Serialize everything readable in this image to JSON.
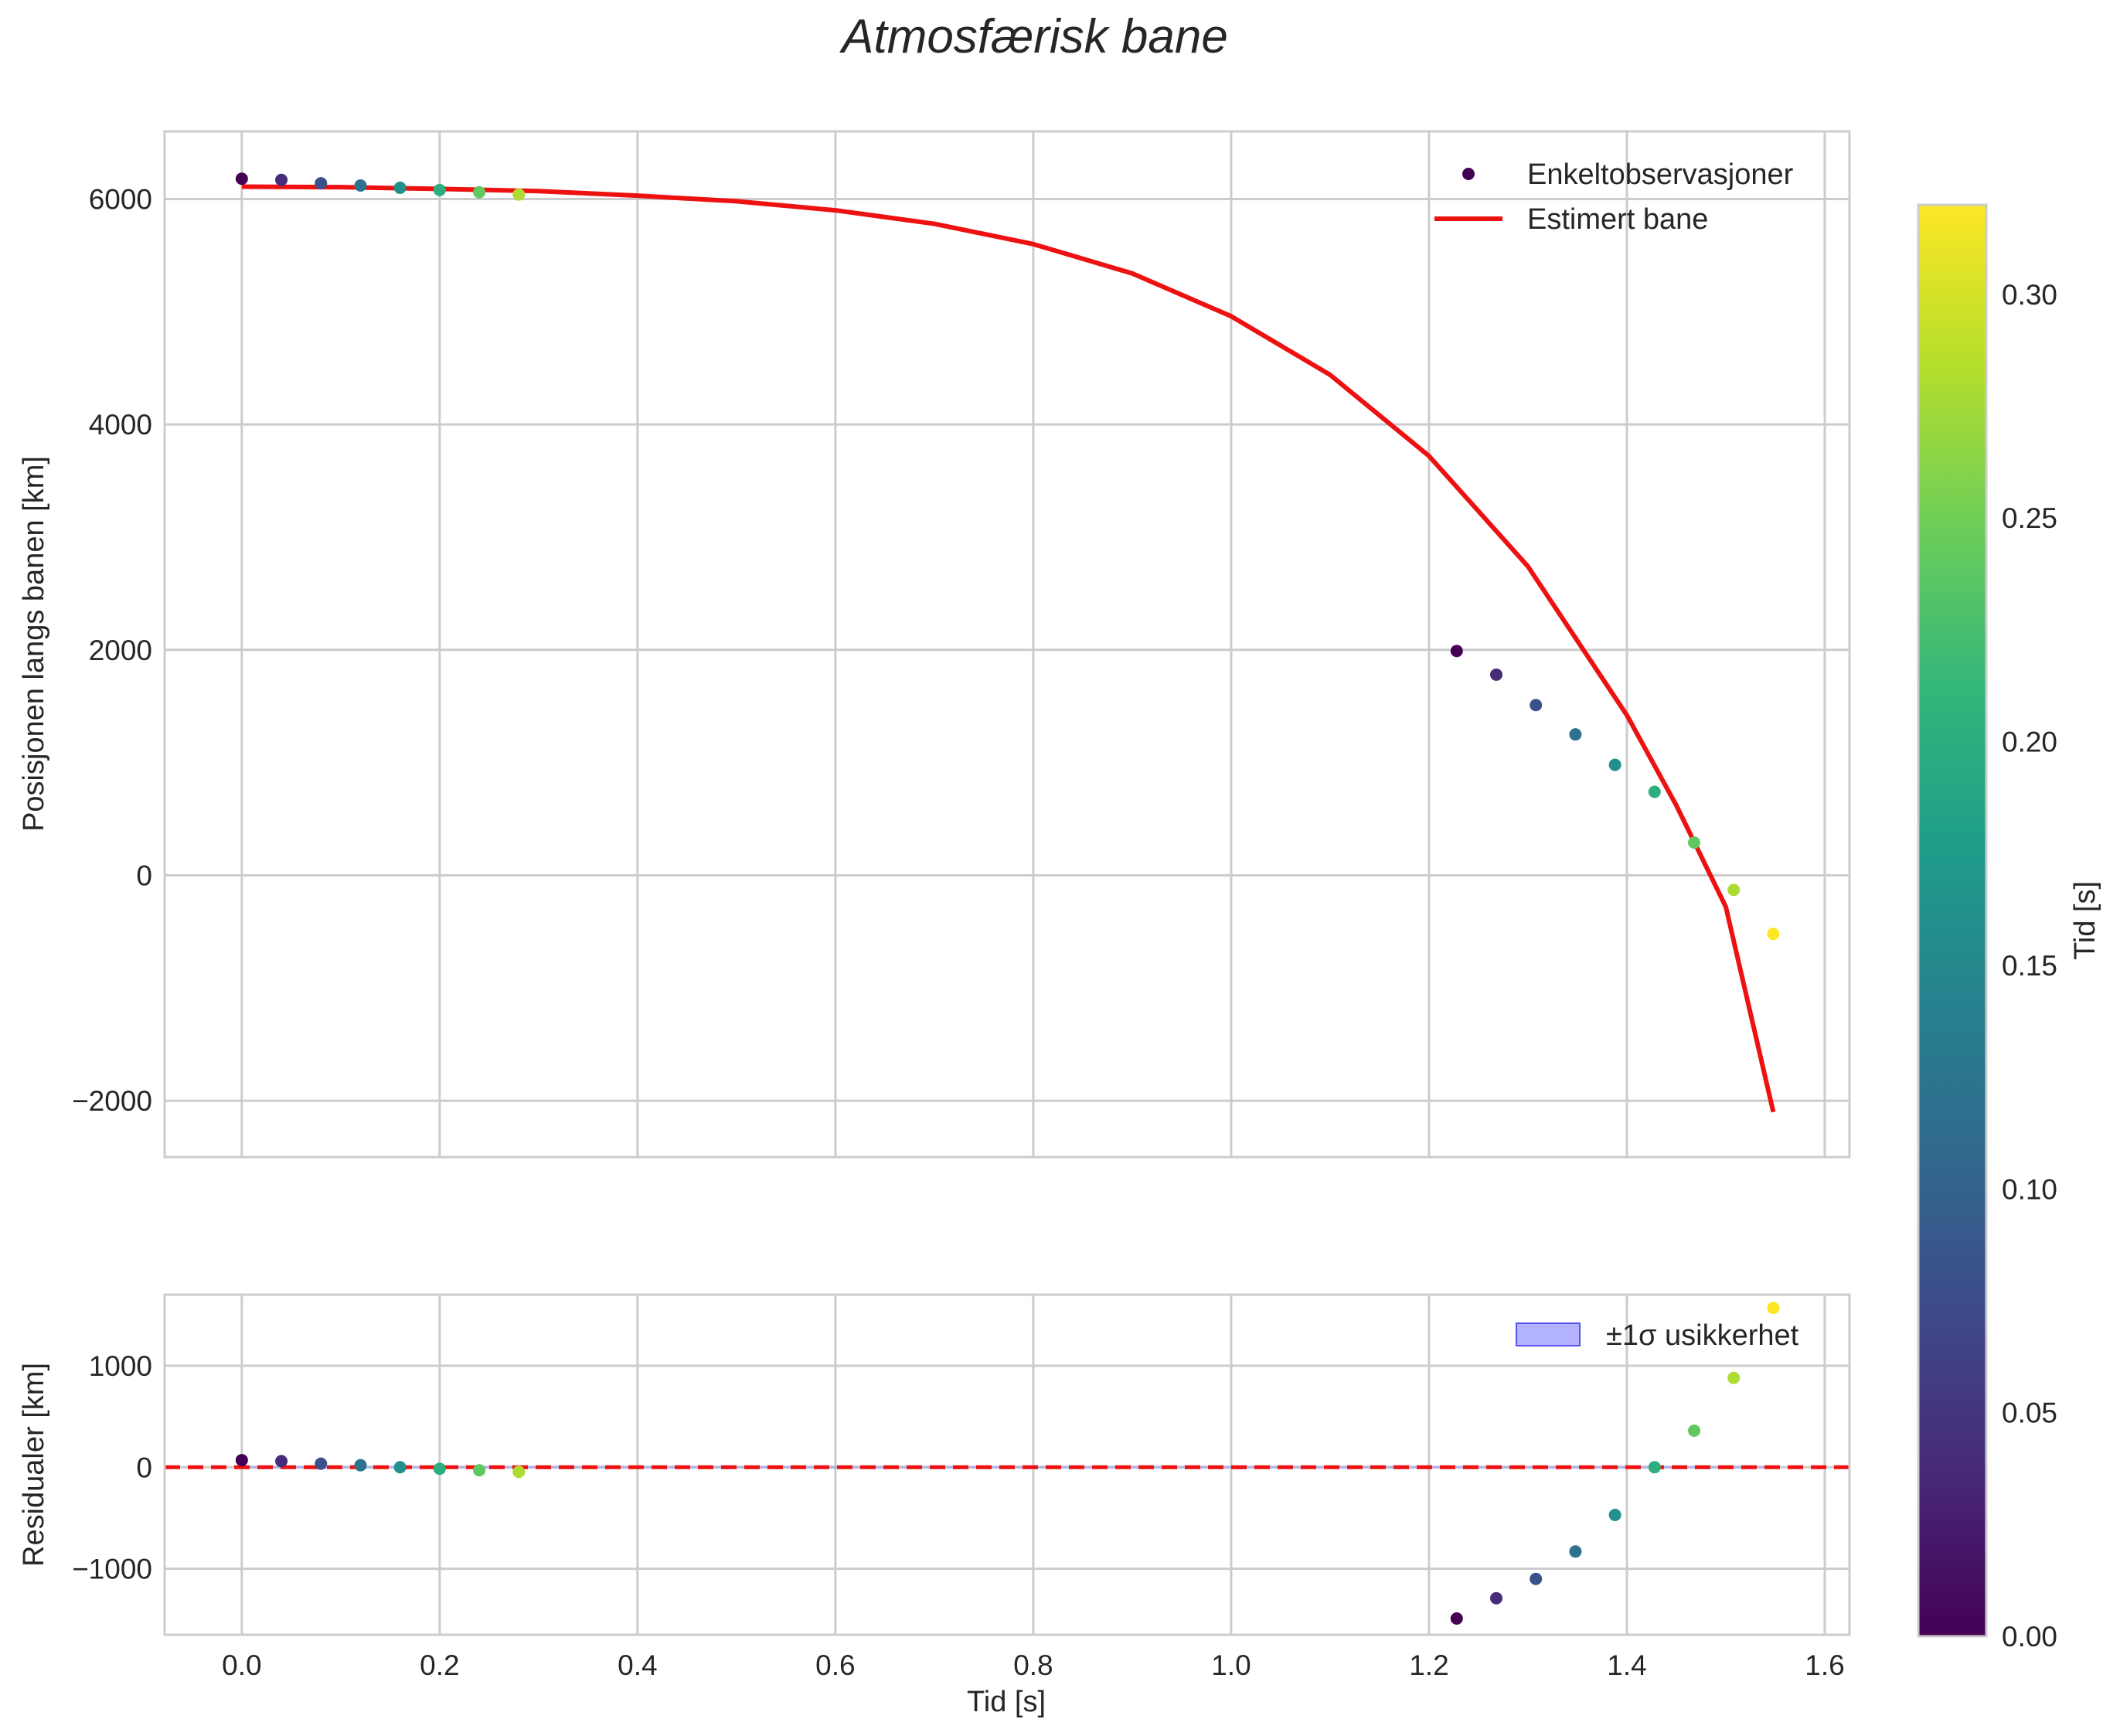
{
  "chart_data": [
    {
      "type": "scatter",
      "title": "Atmosfærisk bane",
      "xlabel": "",
      "ylabel": "Posisjonen langs banen [km]",
      "xlim": [
        -0.078,
        1.625
      ],
      "ylim": [
        -2500,
        6600
      ],
      "xticks": [
        0.0,
        0.2,
        0.4,
        0.6,
        0.8,
        1.0,
        1.2,
        1.4,
        1.6
      ],
      "yticks": [
        -2000,
        0,
        2000,
        4000,
        6000
      ],
      "ytick_labels": [
        "−2000",
        "0",
        "2000",
        "4000",
        "6000"
      ],
      "grid": true,
      "legend_position": "top-right",
      "series": [
        {
          "name": "Enkeltobservasjoner",
          "kind": "scatter",
          "x": [
            0.0,
            0.04,
            0.08,
            0.12,
            0.16,
            0.2,
            0.24,
            0.28,
            1.228,
            1.268,
            1.308,
            1.348,
            1.388,
            1.428,
            1.468,
            1.508,
            1.548
          ],
          "y": [
            6180,
            6170,
            6140,
            6120,
            6100,
            6080,
            6060,
            6040,
            1990,
            1780,
            1510,
            1250,
            980,
            740,
            290,
            -130,
            -520
          ],
          "color_values": [
            0.0,
            0.04,
            0.08,
            0.12,
            0.16,
            0.2,
            0.24,
            0.28,
            0.0,
            0.04,
            0.08,
            0.12,
            0.16,
            0.2,
            0.24,
            0.28,
            0.32
          ]
        },
        {
          "name": "Estimert bane",
          "kind": "line",
          "color": "#ee1111",
          "x": [
            0.0,
            0.1,
            0.2,
            0.3,
            0.4,
            0.5,
            0.6,
            0.7,
            0.8,
            0.9,
            1.0,
            1.1,
            1.2,
            1.3,
            1.4,
            1.45,
            1.5,
            1.548
          ],
          "y": [
            6110,
            6105,
            6090,
            6070,
            6030,
            5980,
            5900,
            5780,
            5600,
            5340,
            4960,
            4440,
            3720,
            2740,
            1420,
            620,
            -280,
            -2100
          ]
        }
      ]
    },
    {
      "type": "scatter",
      "title": "",
      "xlabel": "Tid [s]",
      "ylabel": "Residualer [km]",
      "xlim": [
        -0.078,
        1.625
      ],
      "ylim": [
        -1650,
        1700
      ],
      "xticks": [
        0.0,
        0.2,
        0.4,
        0.6,
        0.8,
        1.0,
        1.2,
        1.4,
        1.6
      ],
      "xtick_labels": [
        "0.0",
        "0.2",
        "0.4",
        "0.6",
        "0.8",
        "1.0",
        "1.2",
        "1.4",
        "1.6"
      ],
      "yticks": [
        -1000,
        0,
        1000
      ],
      "ytick_labels": [
        "−1000",
        "0",
        "1000"
      ],
      "grid": true,
      "legend_position": "top-right",
      "reference_line": {
        "y": 0,
        "color": "#ee1111",
        "style": "dashed"
      },
      "series": [
        {
          "name": "±1σ usikkerhet",
          "kind": "band",
          "color": "#8080ff",
          "lower": -15,
          "upper": 15
        },
        {
          "kind": "scatter",
          "x": [
            0.0,
            0.04,
            0.08,
            0.12,
            0.16,
            0.2,
            0.24,
            0.28,
            1.228,
            1.268,
            1.308,
            1.348,
            1.388,
            1.428,
            1.468,
            1.508,
            1.548
          ],
          "y": [
            70,
            60,
            35,
            20,
            0,
            -15,
            -30,
            -45,
            -1490,
            -1290,
            -1100,
            -830,
            -470,
            0,
            360,
            880,
            1570
          ],
          "color_values": [
            0.0,
            0.04,
            0.08,
            0.12,
            0.16,
            0.2,
            0.24,
            0.28,
            0.0,
            0.04,
            0.08,
            0.12,
            0.16,
            0.2,
            0.24,
            0.28,
            0.32
          ]
        }
      ]
    }
  ],
  "colorbar": {
    "label": "Tid [s]",
    "range": [
      0.0,
      0.32
    ],
    "colormap": "viridis",
    "ticks": [
      0.0,
      0.05,
      0.1,
      0.15,
      0.2,
      0.25,
      0.3
    ],
    "tick_labels": [
      "0.00",
      "0.05",
      "0.10",
      "0.15",
      "0.20",
      "0.25",
      "0.30"
    ]
  },
  "colors": {
    "grid": "#cccccc",
    "axes_edge": "#cccccc",
    "fit_line": "#ee1111",
    "band": "#8080ff"
  }
}
